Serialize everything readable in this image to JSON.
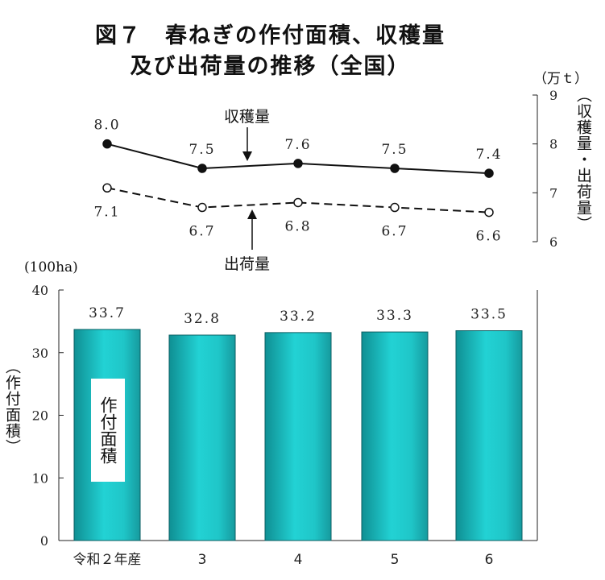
{
  "chart_data": [
    {
      "type": "line",
      "title_line1": "図７　春ねぎの作付面積、収穫量",
      "title_line2": "及び出荷量の推移（全国）",
      "unit": "（万ｔ）",
      "ylabel": "（収穫量・出荷量）",
      "ylim": [
        6,
        9
      ],
      "yticks": [
        "6",
        "7",
        "8",
        "9"
      ],
      "categories": [
        "令和２年産",
        "3",
        "4",
        "5",
        "6"
      ],
      "series": [
        {
          "name": "収穫量",
          "values": [
            8.0,
            7.5,
            7.6,
            7.5,
            7.4
          ],
          "labels": [
            "8.0",
            "7.5",
            "7.6",
            "7.5",
            "7.4"
          ],
          "style": "solid-filled"
        },
        {
          "name": "出荷量",
          "values": [
            7.1,
            6.7,
            6.8,
            6.7,
            6.6
          ],
          "labels": [
            "7.1",
            "6.7",
            "6.8",
            "6.7",
            "6.6"
          ],
          "style": "dashed-open"
        }
      ]
    },
    {
      "type": "bar",
      "unit": "(100ha)",
      "ylabel": "（作付面積）",
      "bar_label": "作付面積",
      "ylim": [
        0,
        40
      ],
      "yticks": [
        "0",
        "10",
        "20",
        "30",
        "40"
      ],
      "categories": [
        "令和２年産",
        "3",
        "4",
        "5",
        "6"
      ],
      "values": [
        33.7,
        32.8,
        33.2,
        33.3,
        33.5
      ],
      "labels": [
        "33.7",
        "32.8",
        "33.2",
        "33.3",
        "33.5"
      ],
      "color": "#1fc6c8"
    }
  ]
}
